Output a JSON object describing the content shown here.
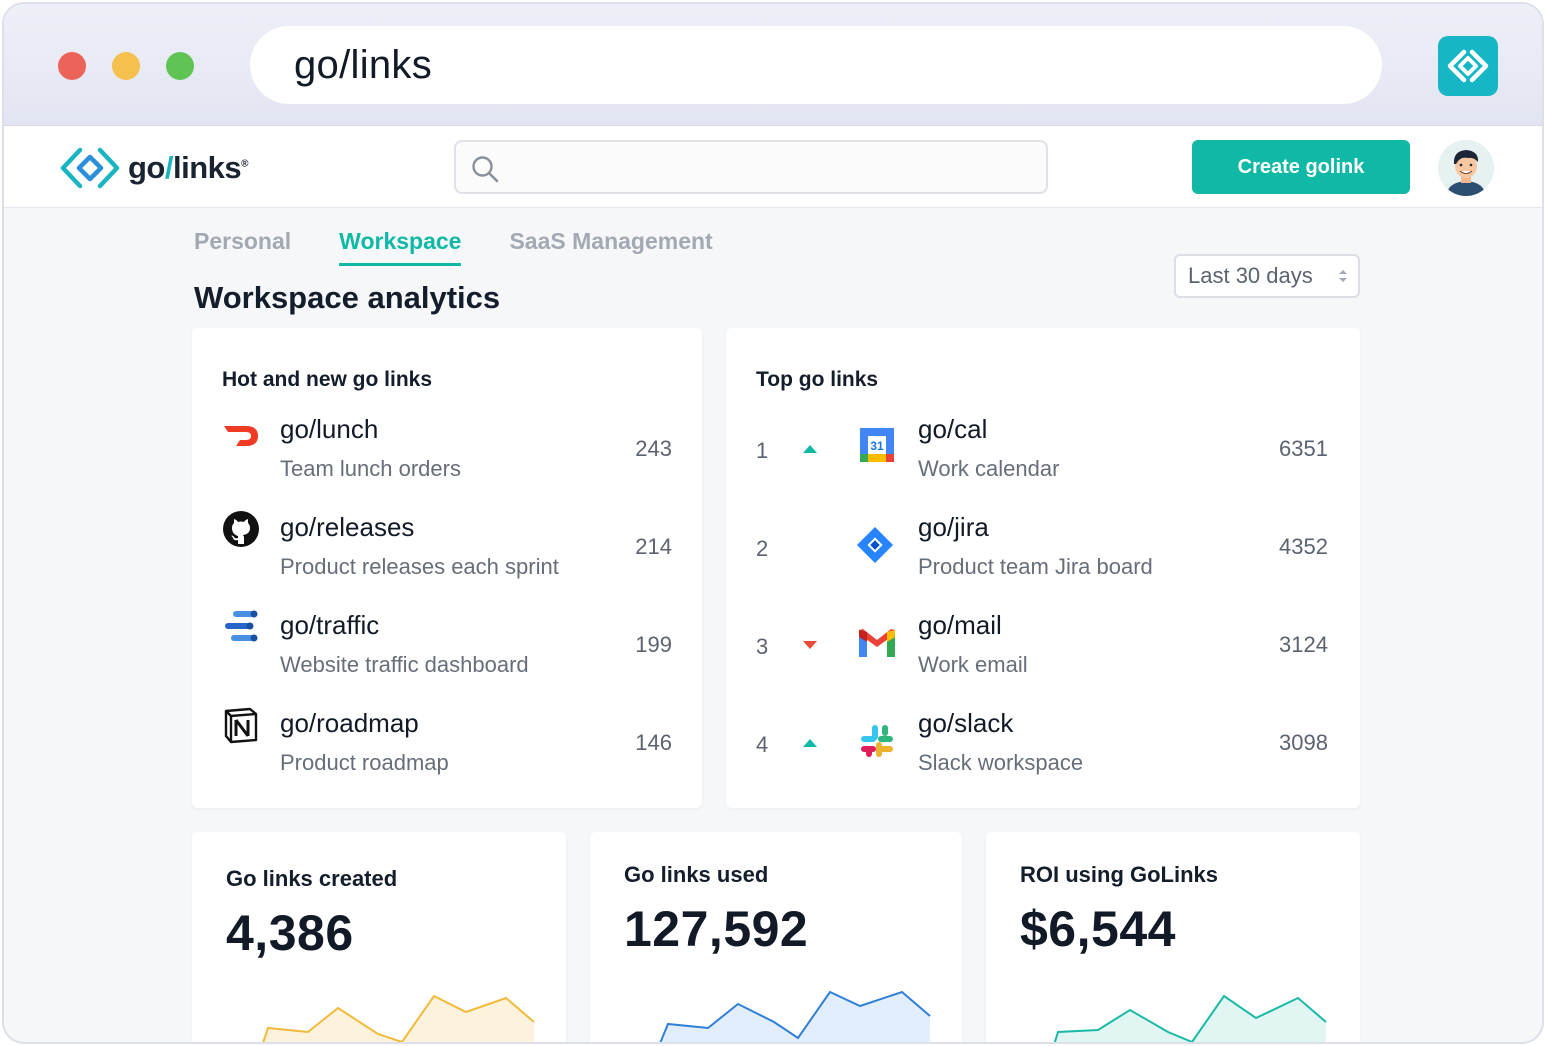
{
  "browser": {
    "url": "go/links"
  },
  "app": {
    "logo_text_go": "go",
    "logo_text_slash": "/",
    "logo_text_links": "links",
    "logo_reg": "®",
    "search_placeholder": "",
    "create_button": "Create golink"
  },
  "tabs": [
    {
      "label": "Personal",
      "active": false
    },
    {
      "label": "Workspace",
      "active": true
    },
    {
      "label": "SaaS Management",
      "active": false
    }
  ],
  "page_title": "Workspace analytics",
  "date_range": "Last 30 days",
  "hot_links": {
    "title": "Hot and new go links",
    "items": [
      {
        "icon": "doordash-icon",
        "link": "go/lunch",
        "desc": "Team lunch orders",
        "count": "243"
      },
      {
        "icon": "github-icon",
        "link": "go/releases",
        "desc": "Product releases each sprint",
        "count": "214"
      },
      {
        "icon": "analytics-icon",
        "link": "go/traffic",
        "desc": "Website traffic dashboard",
        "count": "199"
      },
      {
        "icon": "notion-icon",
        "link": "go/roadmap",
        "desc": "Product roadmap",
        "count": "146"
      }
    ]
  },
  "top_links": {
    "title": "Top go links",
    "items": [
      {
        "rank": "1",
        "trend": "up",
        "icon": "google-calendar-icon",
        "link": "go/cal",
        "desc": "Work calendar",
        "count": "6351"
      },
      {
        "rank": "2",
        "trend": "none",
        "icon": "jira-icon",
        "link": "go/jira",
        "desc": "Product team Jira board",
        "count": "4352"
      },
      {
        "rank": "3",
        "trend": "down",
        "icon": "gmail-icon",
        "link": "go/mail",
        "desc": "Work email",
        "count": "3124"
      },
      {
        "rank": "4",
        "trend": "up",
        "icon": "slack-icon",
        "link": "go/slack",
        "desc": "Slack workspace",
        "count": "3098"
      }
    ]
  },
  "stats": [
    {
      "label": "Go links created",
      "value": "4,386",
      "color": "#f3b93a",
      "fill": "#fdf3dc"
    },
    {
      "label": "Go links used",
      "value": "127,592",
      "color": "#2f7fd6",
      "fill": "#e2eefb"
    },
    {
      "label": "ROI using GoLinks",
      "value": "$6,544",
      "color": "#19b9a6",
      "fill": "#e1f6f3"
    }
  ],
  "colors": {
    "accent": "#10b8a6",
    "trend_up": "#10b8a6",
    "trend_down": "#ea4b35"
  }
}
